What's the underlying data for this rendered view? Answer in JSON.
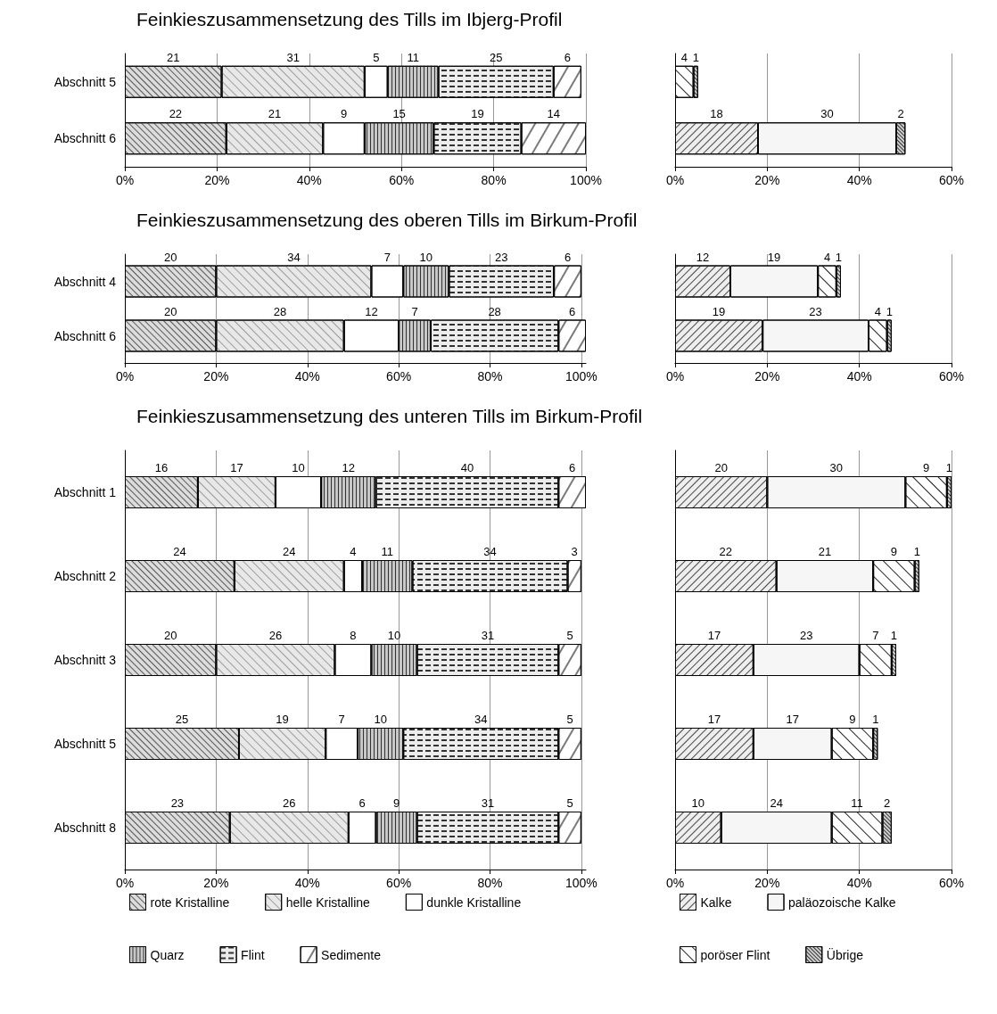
{
  "chart_data": [
    {
      "type": "bar",
      "title": "Feinkieszusammensetzung des Tills im Ibjerg-Profil",
      "orientation": "horizontal",
      "stacked": true,
      "data_labels": true,
      "grid": "x",
      "categories": [
        "Abschnitt 5",
        "Abschnitt 6"
      ],
      "xlim": [
        0,
        100
      ],
      "xticks": [
        {
          "value": 0,
          "label": "0%"
        },
        {
          "value": 20,
          "label": "20%"
        },
        {
          "value": 40,
          "label": "40%"
        },
        {
          "value": 60,
          "label": "60%"
        },
        {
          "value": 80,
          "label": "80%"
        },
        {
          "value": 100,
          "label": "100%"
        }
      ],
      "series": [
        {
          "color": "#dcdcdc",
          "values": [
            21,
            22
          ]
        },
        {
          "color": "#e8e8e8",
          "values": [
            31,
            21
          ]
        },
        {
          "color": "#ffffff",
          "values": [
            5,
            9
          ]
        },
        {
          "color": "#c8c8c8",
          "values": [
            11,
            15
          ]
        },
        {
          "color": "#ececec",
          "values": [
            25,
            19
          ]
        },
        {
          "color": "#ffffff",
          "values": [
            6,
            14
          ]
        }
      ]
    },
    {
      "type": "bar",
      "orientation": "horizontal",
      "stacked": true,
      "data_labels": true,
      "grid": "x",
      "categories": [
        null,
        null
      ],
      "xlim": [
        0,
        60
      ],
      "xticks": [
        {
          "value": 0,
          "label": "0%"
        },
        {
          "value": 20,
          "label": "20%"
        },
        {
          "value": 40,
          "label": "40%"
        },
        {
          "value": 60,
          "label": "60%"
        }
      ],
      "series": [
        {
          "color": "#eeeeee",
          "values": [
            null,
            18
          ]
        },
        {
          "color": "#f6f6f6",
          "values": [
            null,
            30
          ]
        },
        {
          "color": "#ffffff",
          "values": [
            4,
            null
          ]
        },
        {
          "color": "#d0d0d0",
          "values": [
            1,
            2
          ]
        }
      ]
    },
    {
      "type": "bar",
      "title": "Feinkieszusammensetzung des oberen Tills im Birkum-Profil",
      "orientation": "horizontal",
      "stacked": true,
      "data_labels": true,
      "grid": "x",
      "categories": [
        "Abschnitt 4",
        "Abschnitt 6"
      ],
      "xlim": [
        0,
        101
      ],
      "xticks": [
        {
          "value": 0,
          "label": "0%"
        },
        {
          "value": 20,
          "label": "20%"
        },
        {
          "value": 40,
          "label": "40%"
        },
        {
          "value": 60,
          "label": "60%"
        },
        {
          "value": 80,
          "label": "80%"
        },
        {
          "value": 100,
          "label": "100%"
        }
      ],
      "series": [
        {
          "color": "#dcdcdc",
          "values": [
            20,
            20
          ]
        },
        {
          "color": "#e8e8e8",
          "values": [
            34,
            28
          ]
        },
        {
          "color": "#ffffff",
          "values": [
            7,
            12
          ]
        },
        {
          "color": "#c8c8c8",
          "values": [
            10,
            7
          ]
        },
        {
          "color": "#ececec",
          "values": [
            23,
            28
          ]
        },
        {
          "color": "#ffffff",
          "values": [
            6,
            6
          ]
        }
      ]
    },
    {
      "type": "bar",
      "orientation": "horizontal",
      "stacked": true,
      "data_labels": true,
      "grid": "x",
      "categories": [
        null,
        null
      ],
      "xlim": [
        0,
        60
      ],
      "xticks": [
        {
          "value": 0,
          "label": "0%"
        },
        {
          "value": 20,
          "label": "20%"
        },
        {
          "value": 40,
          "label": "40%"
        },
        {
          "value": 60,
          "label": "60%"
        }
      ],
      "series": [
        {
          "color": "#eeeeee",
          "values": [
            12,
            19
          ]
        },
        {
          "color": "#f6f6f6",
          "values": [
            19,
            23
          ]
        },
        {
          "color": "#ffffff",
          "values": [
            4,
            4
          ]
        },
        {
          "color": "#d0d0d0",
          "values": [
            1,
            1
          ]
        }
      ]
    },
    {
      "type": "bar",
      "title": "Feinkieszusammensetzung des unteren Tills im Birkum-Profil",
      "orientation": "horizontal",
      "stacked": true,
      "data_labels": true,
      "grid": "x",
      "legend": "bottom",
      "categories": [
        "Abschnitt 1",
        "Abschnitt 2",
        "Abschnitt 3",
        "Abschnitt 5",
        "Abschnitt 8"
      ],
      "xlim": [
        0,
        101
      ],
      "xticks": [
        {
          "value": 0,
          "label": "0%"
        },
        {
          "value": 20,
          "label": "20%"
        },
        {
          "value": 40,
          "label": "40%"
        },
        {
          "value": 60,
          "label": "60%"
        },
        {
          "value": 80,
          "label": "80%"
        },
        {
          "value": 100,
          "label": "100%"
        }
      ],
      "series": [
        {
          "name": "rote Kristalline",
          "color": "#dcdcdc",
          "values": [
            16,
            24,
            20,
            25,
            23
          ]
        },
        {
          "name": "helle Kristalline",
          "color": "#e8e8e8",
          "values": [
            17,
            24,
            26,
            19,
            26
          ]
        },
        {
          "name": "dunkle Kristalline",
          "color": "#ffffff",
          "values": [
            10,
            4,
            8,
            7,
            6
          ]
        },
        {
          "name": "Quarz",
          "color": "#c8c8c8",
          "values": [
            12,
            11,
            10,
            10,
            9
          ]
        },
        {
          "name": "Flint",
          "color": "#ececec",
          "values": [
            40,
            34,
            31,
            34,
            31
          ]
        },
        {
          "name": "Sedimente",
          "color": "#ffffff",
          "values": [
            6,
            3,
            5,
            5,
            5
          ]
        }
      ]
    },
    {
      "type": "bar",
      "orientation": "horizontal",
      "stacked": true,
      "data_labels": true,
      "grid": "x",
      "legend": "bottom",
      "categories": [
        null,
        null,
        null,
        null,
        null
      ],
      "xlim": [
        0,
        60
      ],
      "xticks": [
        {
          "value": 0,
          "label": "0%"
        },
        {
          "value": 20,
          "label": "20%"
        },
        {
          "value": 40,
          "label": "40%"
        },
        {
          "value": 60,
          "label": "60%"
        }
      ],
      "series": [
        {
          "name": "Kalke",
          "color": "#eeeeee",
          "values": [
            20,
            22,
            17,
            17,
            10
          ]
        },
        {
          "name": "paläozoische Kalke",
          "color": "#f6f6f6",
          "values": [
            30,
            21,
            23,
            17,
            24
          ]
        },
        {
          "name": "poröser Flint",
          "color": "#ffffff",
          "values": [
            9,
            9,
            7,
            9,
            11
          ]
        },
        {
          "name": "Übrige",
          "color": "#d0d0d0",
          "values": [
            1,
            1,
            1,
            1,
            2
          ]
        }
      ]
    }
  ]
}
